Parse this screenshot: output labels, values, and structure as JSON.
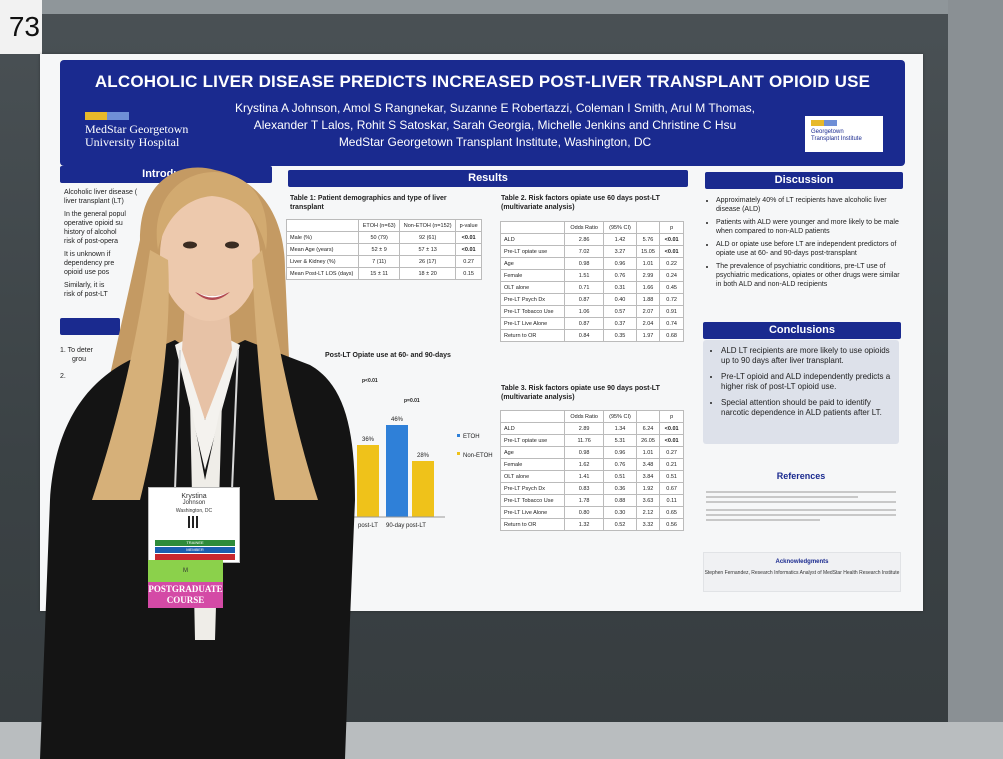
{
  "booth_number": "73",
  "poster": {
    "title": "ALCOHOLIC LIVER DISEASE PREDICTS INCREASED POST-LIVER TRANSPLANT OPIOID USE",
    "authors_line1": "Krystina A Johnson, Amol S Rangnekar, Suzanne E Robertazzi, Coleman I Smith, Arul M Thomas,",
    "authors_line2": "Alexander T Lalos, Rohit S Satoskar, Sarah Georgia, Michelle Jenkins and Christine C Hsu",
    "institution": "MedStar Georgetown Transplant Institute, Washington, DC",
    "logo_left_line1": "MedStar Georgetown",
    "logo_left_line2": "University Hospital",
    "logo_right_line1": "Georgetown",
    "logo_right_line2": "Transplant Institute",
    "intro": {
      "heading": "Introduct",
      "bullets": [
        "Alcoholic liver disease (",
        "liver transplant (LT)",
        "In the general popul",
        "operative opioid su",
        "history of alcohol",
        "risk of post-opera",
        "It is unknown if",
        "dependency pre",
        "opioid use pos",
        "Similarly, it is",
        "risk of post-LT"
      ]
    },
    "aims": {
      "items": [
        "1.  To deter",
        "grou",
        "2."
      ]
    },
    "results": {
      "heading": "Results",
      "table1": {
        "title": "Table 1: Patient demographics and type of liver transplant",
        "columns": [
          "",
          "ETOH (n=63)",
          "Non-ETOH (n=152)",
          "p-value"
        ],
        "rows": [
          [
            "Male (%)",
            "50 (79)",
            "92 (61)",
            "<0.01"
          ],
          [
            "Mean Age (years)",
            "52 ± 9",
            "57 ± 13",
            "<0.01"
          ],
          [
            "Liver & Kidney (%)",
            "7 (11)",
            "26 (17)",
            "0.27"
          ],
          [
            "Mean Post-LT LOS (days)",
            "15 ± 11",
            "18 ± 20",
            "0.15"
          ]
        ]
      },
      "figure": {
        "title": "Post-LT Opiate use at 60- and 90-days",
        "legend": [
          "ETOH",
          "Non-ETOH"
        ]
      },
      "table2": {
        "title": "Table 2. Risk factors opiate use 60 days post-LT (multivariate analysis)",
        "columns": [
          "",
          "Odds Ratio",
          "(95% CI)",
          "",
          "p"
        ],
        "rows": [
          [
            "ALD",
            "2.86",
            "1.42",
            "5.76",
            "<0.01"
          ],
          [
            "Pre-LT opiate use",
            "7.02",
            "3.27",
            "15.05",
            "<0.01"
          ],
          [
            "Age",
            "0.98",
            "0.96",
            "1.01",
            "0.22"
          ],
          [
            "Female",
            "1.51",
            "0.76",
            "2.99",
            "0.24"
          ],
          [
            "OLT alone",
            "0.71",
            "0.31",
            "1.66",
            "0.45"
          ],
          [
            "Pre-LT Psych Dx",
            "0.87",
            "0.40",
            "1.88",
            "0.72"
          ],
          [
            "Pre-LT Tobacco Use",
            "1.06",
            "0.57",
            "2.07",
            "0.91"
          ],
          [
            "Pre-LT Live Alone",
            "0.87",
            "0.37",
            "2.04",
            "0.74"
          ],
          [
            "Return to OR",
            "0.84",
            "0.35",
            "1.97",
            "0.68"
          ]
        ]
      },
      "table3": {
        "title": "Table 3. Risk factors opiate use 90 days post-LT (multivariate analysis)",
        "columns": [
          "",
          "Odds Ratio",
          "(95% CI)",
          "",
          "p"
        ],
        "rows": [
          [
            "ALD",
            "2.89",
            "1.34",
            "6.24",
            "<0.01"
          ],
          [
            "Pre-LT opiate use",
            "11.76",
            "5.31",
            "26.05",
            "<0.01"
          ],
          [
            "Age",
            "0.98",
            "0.96",
            "1.01",
            "0.27"
          ],
          [
            "Female",
            "1.62",
            "0.76",
            "3.48",
            "0.21"
          ],
          [
            "OLT alone",
            "1.41",
            "0.51",
            "3.84",
            "0.51"
          ],
          [
            "Pre-LT Psych Dx",
            "0.83",
            "0.36",
            "1.92",
            "0.67"
          ],
          [
            "Pre-LT Tobacco Use",
            "1.78",
            "0.88",
            "3.63",
            "0.11"
          ],
          [
            "Pre-LT Live Alone",
            "0.80",
            "0.30",
            "2.12",
            "0.65"
          ],
          [
            "Return to OR",
            "1.32",
            "0.52",
            "3.32",
            "0.56"
          ]
        ]
      }
    },
    "discussion": {
      "heading": "Discussion",
      "bullets": [
        "Approximately 40% of LT recipients have alcoholic liver disease (ALD)",
        "Patients with ALD were younger and more likely to be male when compared to non-ALD patients",
        "ALD or opiate use before LT are independent predictors of opiate use at 60- and 90-days post-transplant",
        "The prevalence of psychiatric conditions, pre-LT use of psychiatric medications, opiates or other drugs were similar in both ALD and non-ALD recipients"
      ]
    },
    "conclusions": {
      "heading": "Conclusions",
      "bullets": [
        "ALD LT recipients are more likely to use opioids up to 90 days after liver transplant.",
        "Pre-LT opioid and ALD independently predicts a higher risk of post-LT opioid use.",
        "Special attention should be paid to identify narcotic dependence in ALD patients after LT."
      ]
    },
    "references": {
      "heading": "References"
    },
    "acknowledgments": {
      "heading": "Acknowledgments",
      "text": "Stephen Fernandez, Research Informatics Analyst of MedStar Health Research Institute"
    }
  },
  "chart_data": {
    "type": "bar",
    "categories": [
      "60-day post-LT",
      "90-day post-LT"
    ],
    "series": [
      {
        "name": "ETOH",
        "values": [
          null,
          46
        ]
      },
      {
        "name": "Non-ETOH",
        "values": [
          36,
          28
        ]
      }
    ],
    "data_labels": [
      "36%",
      "46%",
      "28%"
    ],
    "p_labels": [
      "p<0.01",
      "p=0.01"
    ],
    "tick_labels": [
      "post-LT",
      "90-day post-LT"
    ],
    "legend": "right",
    "colors": {
      "ETOH": "#2f80d8",
      "Non-ETOH": "#efc21a"
    }
  },
  "badge": {
    "name_line1": "Krystina",
    "name_line2": "Johnson",
    "city": "Washington, DC",
    "stripe1": "TRAINEE",
    "stripe2": "MEMBER",
    "ribbon1": "M",
    "ribbon2_line1": "POSTGRADUATE",
    "ribbon2_line2": "COURSE"
  },
  "colors": {
    "poster_blue": "#1a2a8f",
    "poster_bg": "#f6f7f8",
    "wall": "#3d4447",
    "jacket": "#121212",
    "hair": "#c9a16a"
  }
}
